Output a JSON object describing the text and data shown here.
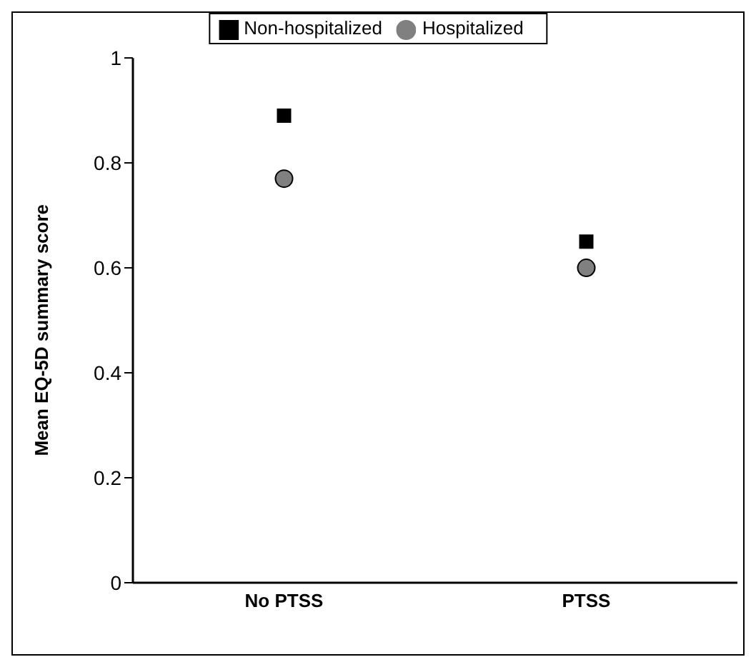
{
  "chart_data": {
    "type": "scatter",
    "ylabel": "Mean EQ-5D summary score",
    "categories": [
      "No PTSS",
      "PTSS"
    ],
    "series": [
      {
        "name": "Non-hospitalized",
        "color": "#000000",
        "marker": "square",
        "values": [
          0.89,
          0.65
        ]
      },
      {
        "name": "Hospitalized",
        "color": "#808080",
        "marker": "circle",
        "values": [
          0.77,
          0.6
        ]
      }
    ],
    "ylim": [
      0,
      1
    ],
    "yticks": [
      0,
      0.2,
      0.4,
      0.6,
      0.8,
      1
    ],
    "grid": false,
    "legend": "top"
  }
}
